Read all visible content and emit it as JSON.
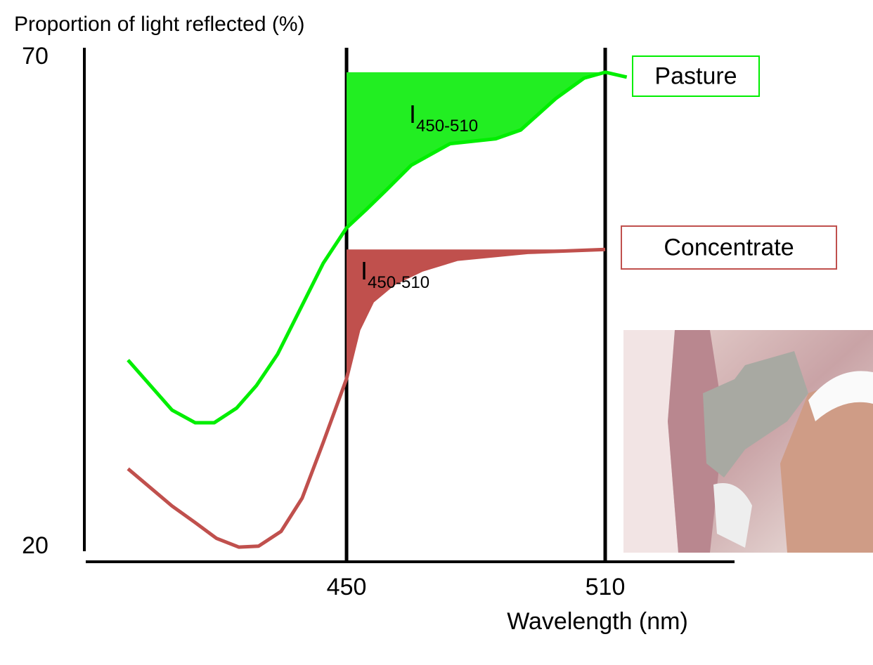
{
  "chart_data": {
    "type": "line",
    "y_label": "Proportion of light reflected (%)",
    "x_label": "Wavelength (nm)",
    "xlim": [
      389.5,
      540
    ],
    "ylim": [
      18.5,
      71
    ],
    "xticks": [
      450,
      510
    ],
    "yticks": [
      20,
      70
    ],
    "grid": true,
    "series": [
      {
        "name": "Pasture",
        "color": "#00ee00",
        "fill_color": "#22ee22",
        "x": [
          399.3,
          409.5,
          414.9,
          419.3,
          424.5,
          429.1,
          434.0,
          438.9,
          444.6,
          450,
          454.4,
          459.3,
          465.0,
          474.0,
          484.6,
          490.4,
          498.5,
          505.1,
          510,
          515
        ],
        "values": [
          39.1,
          34.0,
          32.7,
          32.7,
          34.2,
          36.5,
          39.7,
          44.0,
          49.0,
          52.6,
          54.4,
          56.5,
          59.0,
          61.2,
          61.7,
          62.6,
          65.8,
          67.9,
          68.5,
          68.0
        ],
        "annotation": {
          "text": "I",
          "subscript": "450-510"
        }
      },
      {
        "name": "Concentrate",
        "color": "#c0504d",
        "fill_color": "#c0504d",
        "x": [
          399.3,
          409.5,
          414.9,
          419.8,
          425.0,
          429.6,
          434.8,
          439.7,
          444.6,
          450,
          452.8,
          456.0,
          460.9,
          467.5,
          475.7,
          492.0,
          510
        ],
        "values": [
          28.0,
          24.2,
          22.5,
          20.9,
          20.0,
          20.1,
          21.6,
          25.0,
          30.7,
          37.2,
          42.2,
          45.1,
          46.9,
          48.3,
          49.4,
          50.1,
          50.4
        ],
        "annotation": {
          "text": "I",
          "subscript": "450-510"
        }
      }
    ]
  }
}
